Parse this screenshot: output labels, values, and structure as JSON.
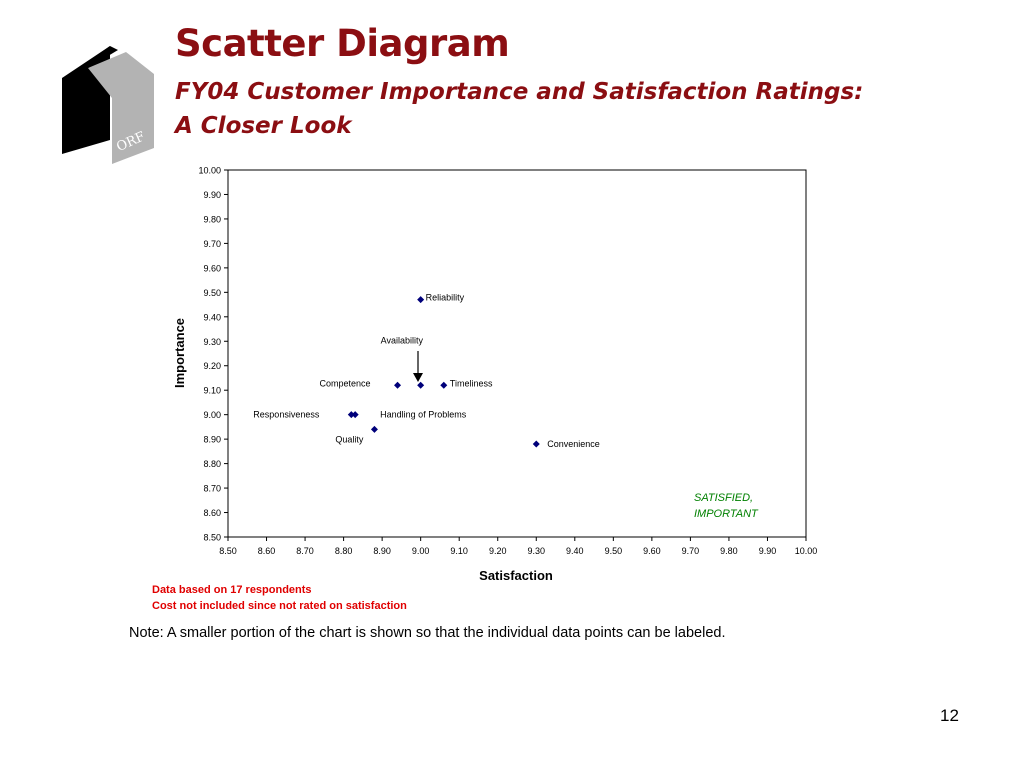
{
  "slide": {
    "title": "Scatter Diagram",
    "subtitle_lines": [
      "FY04 Customer Importance and Satisfaction Ratings:",
      "A Closer Look"
    ],
    "logo_text": "ORF",
    "notes": [
      "Data based on 17 respondents",
      "Cost not included since not rated on satisfaction"
    ],
    "footnote": "Note:  A  smaller portion of the chart is shown so that the individual data points can be labeled.",
    "page_number": "12"
  },
  "colors": {
    "title": "#8b0e12",
    "notes": "#e00000",
    "quadrant_label": "#008000",
    "marker": "#00007a"
  },
  "chart_data": {
    "type": "scatter",
    "title": "",
    "xlabel": "Satisfaction",
    "ylabel": "Importance",
    "xlim": [
      8.5,
      10.0
    ],
    "ylim": [
      8.5,
      10.0
    ],
    "x_ticks": [
      "8.50",
      "8.60",
      "8.70",
      "8.80",
      "8.90",
      "9.00",
      "9.10",
      "9.20",
      "9.30",
      "9.40",
      "9.50",
      "9.60",
      "9.70",
      "9.80",
      "9.90",
      "10.00"
    ],
    "y_ticks": [
      "8.50",
      "8.60",
      "8.70",
      "8.80",
      "8.90",
      "9.00",
      "9.10",
      "9.20",
      "9.30",
      "9.40",
      "9.50",
      "9.60",
      "9.70",
      "9.80",
      "9.90",
      "10.00"
    ],
    "grid": false,
    "legend": "none",
    "points": [
      {
        "label": "Reliability",
        "x": 9.0,
        "y": 9.47
      },
      {
        "label": "Availability",
        "x": 9.0,
        "y": 9.12
      },
      {
        "label": "Competence",
        "x": 8.94,
        "y": 9.12
      },
      {
        "label": "Timeliness",
        "x": 9.06,
        "y": 9.12
      },
      {
        "label": "Responsiveness",
        "x": 8.82,
        "y": 9.0
      },
      {
        "label": "Handling of Problems",
        "x": 8.83,
        "y": 9.0
      },
      {
        "label": "Quality",
        "x": 8.88,
        "y": 8.94
      },
      {
        "label": "Convenience",
        "x": 9.3,
        "y": 8.88
      }
    ],
    "quadrant_label_lines": [
      "SATISFIED,",
      "IMPORTANT"
    ]
  }
}
